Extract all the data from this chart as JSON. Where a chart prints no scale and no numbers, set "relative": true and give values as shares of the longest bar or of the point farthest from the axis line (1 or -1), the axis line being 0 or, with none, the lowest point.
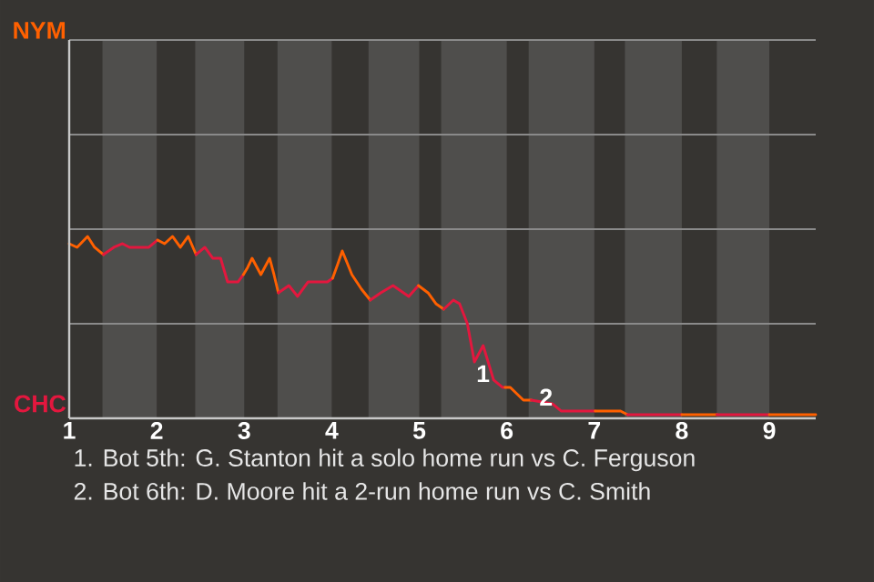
{
  "chart_data": {
    "type": "line",
    "relative": true,
    "xlim": [
      1,
      9.53
    ],
    "xticks": [
      1,
      2,
      3,
      4,
      5,
      6,
      7,
      8,
      9
    ],
    "marker": "none",
    "line_style": "solid",
    "ref_lines": [
      {
        "axis": "y",
        "value": 0.52,
        "color": "#8a8a8a"
      },
      {
        "axis": "y",
        "value": 1.04,
        "color": "#8a8a8a"
      },
      {
        "axis": "y",
        "value": 1.56,
        "color": "#8a8a8a"
      },
      {
        "axis": "y",
        "value": 2.08,
        "color": "#8a8a8a"
      }
    ],
    "bands": [
      {
        "axis": "x",
        "from": 1.38,
        "to": 2,
        "color": "#4f4e4c"
      },
      {
        "axis": "x",
        "from": 2.44,
        "to": 3,
        "color": "#4f4e4c"
      },
      {
        "axis": "x",
        "from": 3.38,
        "to": 4,
        "color": "#4f4e4c"
      },
      {
        "axis": "x",
        "from": 4.42,
        "to": 5,
        "color": "#4f4e4c"
      },
      {
        "axis": "x",
        "from": 5.25,
        "to": 6,
        "color": "#4f4e4c"
      },
      {
        "axis": "x",
        "from": 6.25,
        "to": 7,
        "color": "#4f4e4c"
      },
      {
        "axis": "x",
        "from": 7.35,
        "to": 8,
        "color": "#4f4e4c"
      },
      {
        "axis": "x",
        "from": 8.4,
        "to": 9,
        "color": "#4f4e4c"
      }
    ],
    "series": [
      {
        "name": "NYM",
        "color": "#ff6000",
        "x": [
          1.0,
          1.09,
          1.21,
          1.29,
          1.39
        ],
        "values": [
          0.96,
          0.94,
          1,
          0.94,
          0.9
        ]
      },
      {
        "name": "CHC",
        "color": "#e3173e",
        "x": [
          1.39,
          1.51,
          1.61,
          1.69,
          1.91,
          2.01
        ],
        "values": [
          0.9,
          0.94,
          0.96,
          0.94,
          0.94,
          0.98
        ]
      },
      {
        "color": "#ff6000",
        "x": [
          2.01,
          2.09,
          2.18,
          2.27,
          2.36,
          2.45
        ],
        "values": [
          0.98,
          0.96,
          1,
          0.94,
          1,
          0.9
        ]
      },
      {
        "color": "#e3173e",
        "x": [
          2.45,
          2.55,
          2.64,
          2.73,
          2.81,
          2.93,
          2.99
        ],
        "values": [
          0.9,
          0.94,
          0.88,
          0.88,
          0.75,
          0.75,
          0.79
        ]
      },
      {
        "color": "#ff6000",
        "x": [
          2.99,
          3.04,
          3.09,
          3.19,
          3.29,
          3.34,
          3.39
        ],
        "values": [
          0.79,
          0.83,
          0.88,
          0.79,
          0.88,
          0.79,
          0.69
        ]
      },
      {
        "color": "#e3173e",
        "x": [
          3.39,
          3.51,
          3.61,
          3.73,
          3.95,
          4.01
        ],
        "values": [
          0.69,
          0.73,
          0.67,
          0.75,
          0.75,
          0.77
        ]
      },
      {
        "color": "#ff6000",
        "x": [
          4.01,
          4.07,
          4.12,
          4.18,
          4.23,
          4.34,
          4.39,
          4.44
        ],
        "values": [
          0.77,
          0.85,
          0.92,
          0.85,
          0.79,
          0.71,
          0.68,
          0.65
        ]
      },
      {
        "color": "#e3173e",
        "x": [
          4.44,
          4.56,
          4.7,
          4.88,
          4.99
        ],
        "values": [
          0.65,
          0.69,
          0.73,
          0.67,
          0.73
        ]
      },
      {
        "color": "#ff6000",
        "x": [
          4.99,
          5.1,
          5.19,
          5.28
        ],
        "values": [
          0.73,
          0.69,
          0.63,
          0.6
        ]
      },
      {
        "color": "#e3173e",
        "x": [
          5.28,
          5.39,
          5.46,
          5.55,
          5.63,
          5.73,
          5.85,
          5.95,
          5.98
        ],
        "values": [
          0.6,
          0.65,
          0.63,
          0.52,
          0.31,
          0.4,
          0.21,
          0.17,
          0.17
        ]
      },
      {
        "color": "#ff6000",
        "x": [
          5.98,
          6.04,
          6.19,
          6.28
        ],
        "values": [
          0.17,
          0.17,
          0.1,
          0.1
        ]
      },
      {
        "color": "#e3173e",
        "x": [
          6.28,
          6.52,
          6.62,
          7.01
        ],
        "values": [
          0.1,
          0.08,
          0.04,
          0.04
        ]
      },
      {
        "color": "#ff6000",
        "x": [
          7.01,
          7.15,
          7.3,
          7.38
        ],
        "values": [
          0.04,
          0.04,
          0.04,
          0.02
        ]
      },
      {
        "color": "#e3173e",
        "x": [
          7.38,
          7.55,
          8
        ],
        "values": [
          0.02,
          0.02,
          0.02
        ]
      },
      {
        "color": "#ff6000",
        "x": [
          8,
          8.4
        ],
        "values": [
          0.02,
          0.02
        ]
      },
      {
        "color": "#e3173e",
        "x": [
          8.4,
          9
        ],
        "values": [
          0.02,
          0.02
        ]
      },
      {
        "color": "#ff6000",
        "x": [
          9,
          9.53
        ],
        "values": [
          0.02,
          0.02
        ]
      }
    ],
    "annotations": [
      {
        "text": "1",
        "x": 5.95,
        "y": 0.17
      },
      {
        "text": "2",
        "x": 6.67,
        "y": 0.04
      },
      "1. Bot 5th: G. Stanton hit a solo home run vs C. Ferguson",
      "2. Bot 6th: D. Moore hit a 2-run home run vs C. Smith"
    ]
  }
}
